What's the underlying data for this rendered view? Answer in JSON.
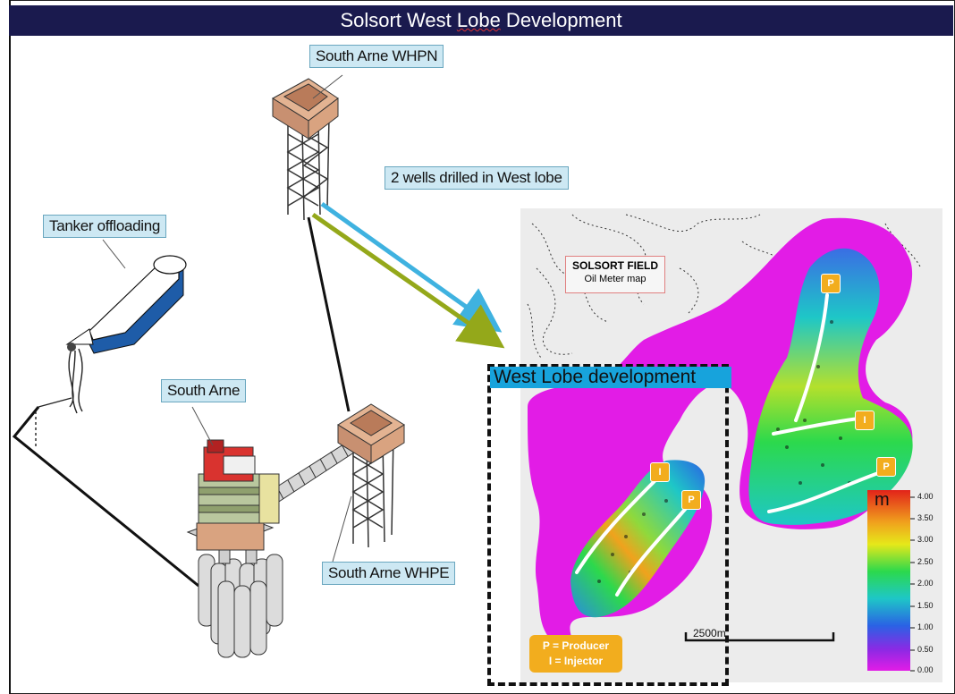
{
  "title": "Solsort West Lobe Development",
  "title_parts": {
    "before": "Solsort West ",
    "underlined": "Lobe",
    "after": " Development"
  },
  "labels": {
    "whpn": "South Arne WHPN",
    "wells": "2 wells drilled in West lobe",
    "tanker": "Tanker offloading",
    "south_arne": "South Arne",
    "whpe": "South Arne WHPE"
  },
  "map": {
    "field_title": "SOLSORT FIELD",
    "field_subtitle": "Oil Meter map",
    "west_lobe_title": "West Lobe development",
    "legend_producer": "P = Producer",
    "legend_injector": "I = Injector",
    "scale": "2500m",
    "well_tags": [
      "P",
      "I",
      "P",
      "I",
      "P"
    ]
  },
  "colorbar": {
    "unit": "m",
    "ticks": [
      "4.00",
      "3.50",
      "3.00",
      "2.50",
      "2.00",
      "1.50",
      "1.00",
      "0.50",
      "0.00"
    ]
  },
  "colors": {
    "title_bar": "#1a1a4e",
    "label_fill": "#cde8f3",
    "well_arrow_blue": "#3fb2e0",
    "well_arrow_green": "#94a81a",
    "west_title_fill": "#17a3dc",
    "tag_fill": "#f2ad1e",
    "low_value": "#e21ce6",
    "high_value": "#e2231a"
  }
}
